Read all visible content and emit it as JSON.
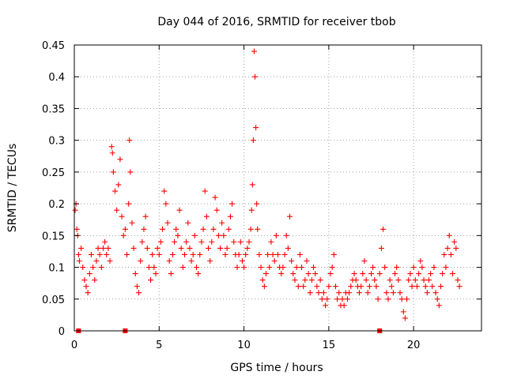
{
  "chart_data": {
    "type": "scatter",
    "title": "Day 044 of 2016, SRMTID for receiver tbob",
    "xlabel": "GPS time / hours",
    "ylabel": "SRMTID / TECUs",
    "xlim": [
      0,
      24
    ],
    "ylim": [
      0,
      0.45
    ],
    "xticks": [
      0,
      5,
      10,
      15,
      20
    ],
    "yticks": [
      0,
      0.05,
      0.1,
      0.15,
      0.2,
      0.25,
      0.3,
      0.35,
      0.4,
      0.45
    ],
    "grid": true,
    "point_style": "plus",
    "series_color": "#ff0000",
    "baseline_markers_x": [
      0.25,
      3.0,
      18.0
    ],
    "series": [
      {
        "name": "SRMTID",
        "x": [
          0.05,
          0.1,
          0.15,
          0.2,
          0.25,
          0.3,
          0.4,
          0.5,
          0.6,
          0.7,
          0.8,
          0.9,
          1.0,
          1.1,
          1.2,
          1.3,
          1.4,
          1.5,
          1.6,
          1.7,
          1.8,
          1.9,
          2.0,
          2.1,
          2.2,
          2.25,
          2.3,
          2.4,
          2.5,
          2.6,
          2.7,
          2.8,
          2.9,
          3.0,
          3.1,
          3.2,
          3.25,
          3.3,
          3.4,
          3.5,
          3.6,
          3.7,
          3.8,
          3.9,
          4.0,
          4.1,
          4.2,
          4.3,
          4.4,
          4.5,
          4.6,
          4.7,
          4.8,
          4.9,
          5.0,
          5.1,
          5.2,
          5.3,
          5.4,
          5.5,
          5.6,
          5.7,
          5.8,
          5.9,
          6.0,
          6.1,
          6.2,
          6.3,
          6.4,
          6.5,
          6.6,
          6.7,
          6.8,
          6.9,
          7.0,
          7.1,
          7.2,
          7.3,
          7.4,
          7.5,
          7.6,
          7.7,
          7.8,
          7.9,
          8.0,
          8.1,
          8.2,
          8.3,
          8.4,
          8.5,
          8.6,
          8.7,
          8.8,
          8.9,
          9.0,
          9.1,
          9.2,
          9.3,
          9.4,
          9.5,
          9.6,
          9.7,
          9.8,
          9.9,
          10.0,
          10.1,
          10.2,
          10.3,
          10.4,
          10.45,
          10.5,
          10.55,
          10.6,
          10.65,
          10.7,
          10.75,
          10.8,
          10.9,
          11.0,
          11.1,
          11.2,
          11.3,
          11.4,
          11.5,
          11.6,
          11.7,
          11.8,
          11.9,
          12.0,
          12.1,
          12.2,
          12.3,
          12.4,
          12.5,
          12.6,
          12.7,
          12.8,
          12.9,
          13.0,
          13.1,
          13.2,
          13.3,
          13.4,
          13.5,
          13.6,
          13.7,
          13.8,
          13.9,
          14.0,
          14.1,
          14.2,
          14.3,
          14.4,
          14.5,
          14.6,
          14.7,
          14.8,
          14.9,
          15.0,
          15.1,
          15.2,
          15.3,
          15.4,
          15.5,
          15.6,
          15.7,
          15.8,
          15.9,
          16.0,
          16.1,
          16.2,
          16.3,
          16.4,
          16.5,
          16.6,
          16.7,
          16.8,
          16.9,
          17.0,
          17.1,
          17.2,
          17.3,
          17.4,
          17.5,
          17.6,
          17.7,
          17.8,
          17.9,
          18.0,
          18.1,
          18.2,
          18.3,
          18.4,
          18.5,
          18.6,
          18.7,
          18.8,
          18.9,
          19.0,
          19.1,
          19.2,
          19.3,
          19.4,
          19.5,
          19.6,
          19.7,
          19.8,
          19.9,
          20.0,
          20.1,
          20.2,
          20.3,
          20.4,
          20.5,
          20.6,
          20.7,
          20.8,
          20.9,
          21.0,
          21.1,
          21.2,
          21.3,
          21.4,
          21.5,
          21.6,
          21.7,
          21.8,
          21.9,
          22.0,
          22.1,
          22.2,
          22.3,
          22.4,
          22.5,
          22.6,
          22.7
        ],
        "y": [
          0.19,
          0.2,
          0.16,
          0.15,
          0.12,
          0.11,
          0.13,
          0.1,
          0.08,
          0.07,
          0.06,
          0.09,
          0.12,
          0.1,
          0.08,
          0.11,
          0.13,
          0.12,
          0.1,
          0.13,
          0.14,
          0.12,
          0.13,
          0.11,
          0.29,
          0.28,
          0.25,
          0.22,
          0.19,
          0.23,
          0.27,
          0.18,
          0.15,
          0.16,
          0.12,
          0.2,
          0.3,
          0.25,
          0.17,
          0.13,
          0.09,
          0.07,
          0.06,
          0.11,
          0.14,
          0.16,
          0.18,
          0.13,
          0.1,
          0.08,
          0.12,
          0.1,
          0.09,
          0.13,
          0.12,
          0.14,
          0.16,
          0.22,
          0.2,
          0.17,
          0.11,
          0.09,
          0.12,
          0.14,
          0.16,
          0.15,
          0.19,
          0.13,
          0.1,
          0.12,
          0.14,
          0.17,
          0.13,
          0.11,
          0.12,
          0.15,
          0.1,
          0.09,
          0.12,
          0.14,
          0.16,
          0.22,
          0.18,
          0.13,
          0.11,
          0.14,
          0.16,
          0.21,
          0.19,
          0.15,
          0.13,
          0.17,
          0.15,
          0.12,
          0.13,
          0.16,
          0.18,
          0.2,
          0.14,
          0.12,
          0.1,
          0.12,
          0.14,
          0.11,
          0.1,
          0.12,
          0.13,
          0.14,
          0.16,
          0.19,
          0.23,
          0.3,
          0.44,
          0.4,
          0.32,
          0.2,
          0.16,
          0.12,
          0.1,
          0.08,
          0.07,
          0.09,
          0.12,
          0.1,
          0.14,
          0.12,
          0.11,
          0.15,
          0.12,
          0.1,
          0.09,
          0.1,
          0.12,
          0.15,
          0.13,
          0.18,
          0.11,
          0.09,
          0.08,
          0.1,
          0.07,
          0.12,
          0.1,
          0.07,
          0.08,
          0.11,
          0.09,
          0.06,
          0.08,
          0.1,
          0.09,
          0.07,
          0.06,
          0.08,
          0.05,
          0.06,
          0.04,
          0.05,
          0.07,
          0.09,
          0.1,
          0.12,
          0.07,
          0.05,
          0.06,
          0.04,
          0.05,
          0.04,
          0.06,
          0.05,
          0.06,
          0.07,
          0.08,
          0.09,
          0.08,
          0.07,
          0.06,
          0.07,
          0.09,
          0.11,
          0.08,
          0.06,
          0.07,
          0.09,
          0.1,
          0.08,
          0.07,
          0.05,
          0.09,
          0.13,
          0.16,
          0.1,
          0.06,
          0.05,
          0.08,
          0.07,
          0.06,
          0.09,
          0.1,
          0.08,
          0.06,
          0.05,
          0.03,
          0.02,
          0.05,
          0.08,
          0.09,
          0.07,
          0.1,
          0.08,
          0.07,
          0.09,
          0.11,
          0.1,
          0.08,
          0.07,
          0.06,
          0.08,
          0.09,
          0.07,
          0.1,
          0.06,
          0.05,
          0.04,
          0.07,
          0.09,
          0.12,
          0.1,
          0.13,
          0.15,
          0.12,
          0.09,
          0.14,
          0.13,
          0.08,
          0.07
        ]
      }
    ]
  }
}
